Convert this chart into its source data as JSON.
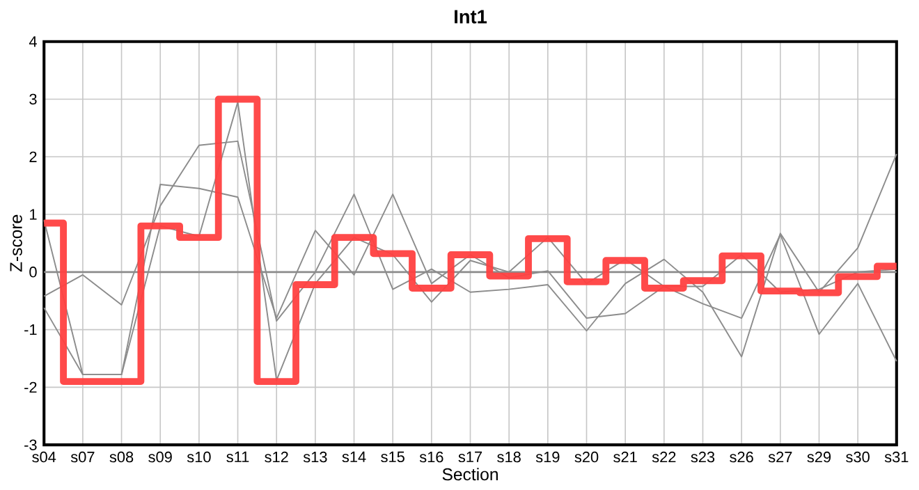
{
  "chart_data": {
    "type": "line",
    "title": "Int1",
    "xlabel": "Section",
    "ylabel": "Z-score",
    "categories": [
      "s04",
      "s07",
      "s08",
      "s09",
      "s10",
      "s11",
      "s12",
      "s13",
      "s14",
      "s15",
      "s16",
      "s17",
      "s18",
      "s19",
      "s20",
      "s21",
      "s22",
      "s23",
      "s26",
      "s27",
      "s29",
      "s30",
      "s31"
    ],
    "ylim": [
      -3,
      4
    ],
    "yticks": [
      -3,
      -2,
      -1,
      0,
      1,
      2,
      3,
      4
    ],
    "grid": true,
    "marker": "none",
    "line_style": "solid",
    "ref_lines": [
      {
        "axis": "y",
        "value": 0,
        "color": "#8c8c8c"
      }
    ],
    "series": [
      {
        "color": "#8c8c8c",
        "values": [
          0.9,
          -1.78,
          -1.78,
          1.52,
          1.45,
          1.3,
          -0.8,
          0.72,
          -0.05,
          1.35,
          -0.2,
          0.3,
          -0.1,
          0.02,
          -0.8,
          -0.72,
          -0.25,
          -0.55,
          -0.8,
          0.65,
          -1.08,
          -0.2,
          -1.55
        ]
      },
      {
        "color": "#8c8c8c",
        "values": [
          -0.42,
          -0.05,
          -0.57,
          1.15,
          2.2,
          2.27,
          -0.85,
          0.0,
          1.35,
          -0.3,
          0.05,
          -0.35,
          -0.3,
          -0.22,
          -1.02,
          -0.2,
          0.22,
          -0.35,
          -1.47,
          0.67,
          -0.35,
          0.42,
          2.05
        ]
      },
      {
        "color": "#8c8c8c",
        "values": [
          -0.62,
          -1.78,
          -1.78,
          0.8,
          0.62,
          2.95,
          -1.88,
          -0.2,
          0.6,
          0.3,
          -0.52,
          0.2,
          0.0,
          0.6,
          -0.2,
          0.22,
          -0.25,
          -0.25,
          0.3,
          -0.35,
          -0.3,
          0.0,
          0.05
        ]
      },
      {
        "color": "#ff4040",
        "type": "step",
        "values": [
          0.85,
          -1.9,
          -1.9,
          0.8,
          0.6,
          3.0,
          -1.9,
          -0.22,
          0.6,
          0.32,
          -0.28,
          0.3,
          -0.07,
          0.58,
          -0.17,
          0.2,
          -0.28,
          -0.15,
          0.28,
          -0.33,
          -0.36,
          -0.08,
          0.1
        ]
      }
    ]
  }
}
